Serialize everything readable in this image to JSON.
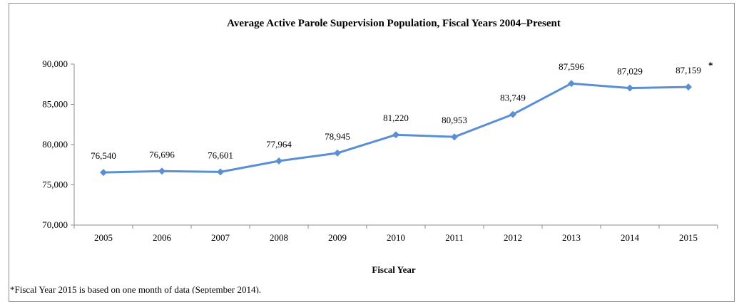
{
  "chart_data": {
    "type": "line",
    "title": "Average Active Parole Supervision Population, Fiscal Years 2004–Present",
    "xlabel": "Fiscal Year",
    "ylabel": "",
    "categories": [
      "2005",
      "2006",
      "2007",
      "2008",
      "2009",
      "2010",
      "2011",
      "2012",
      "2013",
      "2014",
      "2015"
    ],
    "series": [
      {
        "values": [
          76540,
          76696,
          76601,
          77964,
          78945,
          81220,
          80953,
          83749,
          87596,
          87029,
          87159
        ],
        "labels": [
          "76,540",
          "76,696",
          "76,601",
          "77,964",
          "78,945",
          "81,220",
          "80,953",
          "83,749",
          "87,596",
          "87,029",
          "87,159"
        ],
        "color": "#5b8fd4"
      }
    ],
    "ylim": [
      70000,
      90000
    ],
    "yticks": [
      70000,
      75000,
      80000,
      85000,
      90000
    ],
    "ytick_labels": [
      "70,000",
      "75,000",
      "80,000",
      "85,000",
      "90,000"
    ],
    "asterisk_on": "2015",
    "asterisk": "*",
    "grid": false,
    "legend": "none",
    "footnote": "*Fiscal Year 2015 is based on one month of data (September 2014)."
  }
}
